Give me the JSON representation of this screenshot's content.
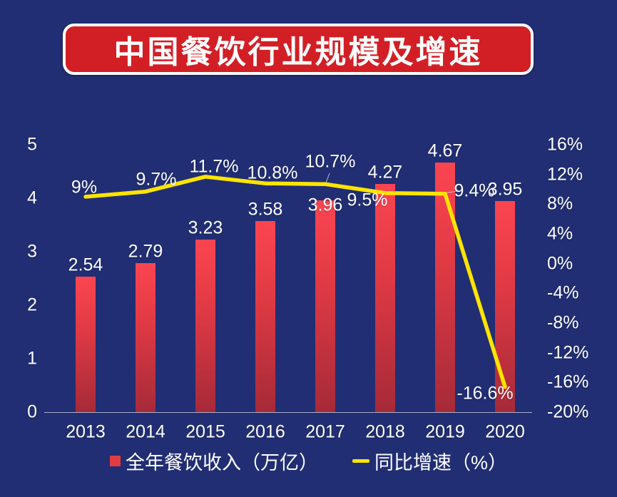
{
  "title": "中国餐饮行业规模及增速",
  "colors": {
    "background": "#212e74",
    "banner_red": "#d21f26",
    "bar_gradient_top": "#fb4551",
    "bar_gradient_bottom": "#a62a39",
    "line_yellow": "#ffe400",
    "text": "#ffffff",
    "axis_line": "#c9cfe3"
  },
  "chart_data": {
    "type": "combo",
    "title": "中国餐饮行业规模及增速",
    "categories": [
      "2013",
      "2014",
      "2015",
      "2016",
      "2017",
      "2018",
      "2019",
      "2020"
    ],
    "series": [
      {
        "name": "全年餐饮收入（万亿）",
        "type": "bar",
        "values": [
          2.54,
          2.79,
          3.23,
          3.58,
          3.96,
          4.27,
          4.67,
          3.95
        ],
        "labels": [
          "2.54",
          "2.79",
          "3.23",
          "3.58",
          "3.96",
          "4.27",
          "4.67",
          "3.95"
        ]
      },
      {
        "name": "同比增速（%）",
        "type": "line",
        "values": [
          9,
          9.7,
          11.7,
          10.8,
          10.7,
          9.5,
          9.4,
          -16.6
        ],
        "labels": [
          "9%",
          "9.7%",
          "11.7%",
          "10.8%",
          "10.7%",
          "9.5%",
          "9.4%",
          "-16.6%"
        ]
      }
    ],
    "left_axis": {
      "ticks": [
        "0",
        "1",
        "2",
        "3",
        "4",
        "5"
      ],
      "min": 0,
      "max": 5
    },
    "right_axis": {
      "ticks": [
        "16%",
        "12%",
        "8%",
        "4%",
        "0%",
        "-4%",
        "-8%",
        "-12%",
        "-16%",
        "-20%"
      ],
      "min": -20,
      "max": 16
    },
    "grid": false,
    "legend_position": "bottom",
    "legend": [
      {
        "label": "全年餐饮收入（万亿）",
        "swatch": "bar"
      },
      {
        "label": "同比增速（%）",
        "swatch": "line"
      }
    ]
  }
}
